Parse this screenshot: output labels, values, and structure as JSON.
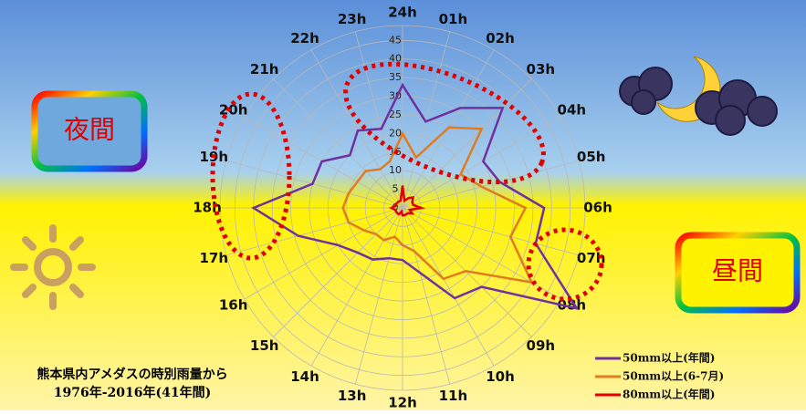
{
  "chart_data": {
    "type": "radar",
    "categories": [
      "24h",
      "01h",
      "02h",
      "03h",
      "04h",
      "05h",
      "06h",
      "07h",
      "08h",
      "09h",
      "10h",
      "11h",
      "12h",
      "13h",
      "14h",
      "15h",
      "16h",
      "17h",
      "18h",
      "19h",
      "20h",
      "21h",
      "22h",
      "23h"
    ],
    "series": [
      {
        "name": "50mm以上(年間)",
        "color": "#7030a0",
        "values": [
          33,
          24,
          31,
          38,
          25,
          27,
          38,
          37,
          54,
          30,
          28,
          18,
          14,
          14,
          16,
          17,
          20,
          29,
          40,
          25,
          25,
          20,
          24,
          22
        ]
      },
      {
        "name": "50mm以上(6-7月)",
        "color": "#e07b20",
        "values": [
          20,
          14,
          25,
          30,
          18,
          22,
          33,
          30,
          40,
          24,
          22,
          12,
          10,
          8,
          10,
          10,
          12,
          15,
          16,
          15,
          14,
          14,
          12,
          13
        ]
      },
      {
        "name": "80mm以上(年間)",
        "color": "#e00000",
        "values": [
          6,
          2,
          3,
          4,
          3,
          3,
          5,
          2,
          3,
          2,
          2,
          2,
          2,
          1,
          2,
          2,
          2,
          2,
          3,
          2,
          2,
          2,
          2,
          2
        ]
      }
    ],
    "rlim": [
      0,
      49
    ],
    "rticks": [
      0,
      5,
      10,
      15,
      20,
      25,
      30,
      35,
      40,
      45
    ],
    "grid": true,
    "annotations": {
      "night": "夜間",
      "day": "昼間",
      "source_line1": "熊本県内アメダスの時別雨量から",
      "source_line2": "1976年-2016年(41年間)"
    }
  }
}
